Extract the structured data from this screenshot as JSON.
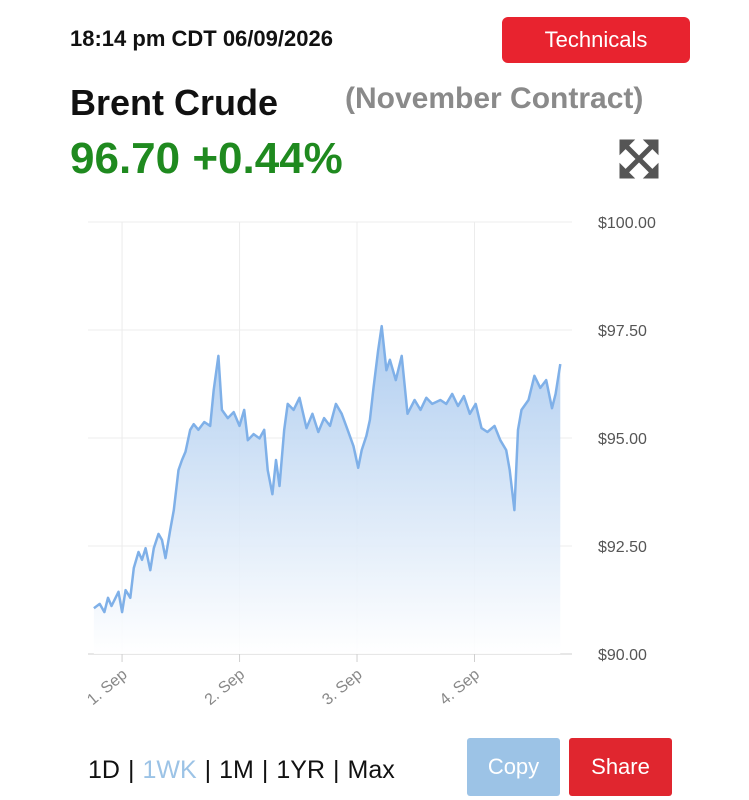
{
  "header": {
    "timestamp": "18:14 pm CDT 06/09/2026",
    "technicals_button": "Technicals",
    "title": "Brent Crude",
    "contract": "(November Contract)",
    "price": "96.70",
    "change": "+0.44%"
  },
  "chart_data": {
    "type": "line",
    "color": "#7fb0e8",
    "grid": true,
    "x": [
      0.76,
      0.81,
      0.85,
      0.88,
      0.91,
      0.97,
      1.0,
      1.03,
      1.07,
      1.1,
      1.14,
      1.17,
      1.2,
      1.24,
      1.27,
      1.31,
      1.34,
      1.37,
      1.41,
      1.44,
      1.48,
      1.51,
      1.54,
      1.58,
      1.61,
      1.65,
      1.7,
      1.75,
      1.78,
      1.82,
      1.85,
      1.9,
      1.95,
      2.0,
      2.04,
      2.07,
      2.12,
      2.17,
      2.21,
      2.24,
      2.28,
      2.31,
      2.34,
      2.38,
      2.41,
      2.46,
      2.51,
      2.57,
      2.62,
      2.67,
      2.72,
      2.77,
      2.82,
      2.87,
      2.92,
      2.97,
      3.01,
      3.04,
      3.08,
      3.11,
      3.14,
      3.18,
      3.21,
      3.25,
      3.28,
      3.33,
      3.38,
      3.43,
      3.49,
      3.54,
      3.59,
      3.64,
      3.71,
      3.76,
      3.81,
      3.86,
      3.91,
      3.96,
      4.01,
      4.06,
      4.11,
      4.17,
      4.22,
      4.27,
      4.3,
      4.34,
      4.37,
      4.4,
      4.46,
      4.51,
      4.56,
      4.61,
      4.66,
      4.69,
      4.73
    ],
    "values": [
      91.06,
      91.16,
      90.97,
      91.3,
      91.11,
      91.44,
      90.97,
      91.48,
      91.3,
      91.99,
      92.36,
      92.18,
      92.45,
      91.94,
      92.45,
      92.78,
      92.64,
      92.22,
      92.87,
      93.33,
      94.26,
      94.49,
      94.68,
      95.19,
      95.32,
      95.19,
      95.37,
      95.28,
      96.11,
      96.9,
      95.65,
      95.46,
      95.6,
      95.28,
      95.65,
      94.95,
      95.09,
      94.99,
      95.19,
      94.26,
      93.7,
      94.49,
      93.89,
      95.19,
      95.79,
      95.65,
      95.93,
      95.23,
      95.56,
      95.14,
      95.46,
      95.28,
      95.79,
      95.56,
      95.19,
      94.81,
      94.31,
      94.72,
      95.05,
      95.42,
      96.16,
      97.04,
      97.59,
      96.57,
      96.81,
      96.34,
      96.9,
      95.56,
      95.88,
      95.65,
      95.93,
      95.79,
      95.88,
      95.79,
      96.02,
      95.74,
      95.97,
      95.56,
      95.79,
      95.23,
      95.14,
      95.28,
      94.95,
      94.72,
      94.26,
      93.33,
      95.19,
      95.65,
      95.88,
      96.44,
      96.16,
      96.34,
      95.69,
      96.02,
      96.71
    ],
    "xlim": [
      0.71,
      4.83
    ],
    "ylim": [
      90,
      100
    ],
    "xticks": [
      {
        "value": 1,
        "label": "1. Sep"
      },
      {
        "value": 2,
        "label": "2. Sep"
      },
      {
        "value": 3,
        "label": "3. Sep"
      },
      {
        "value": 4,
        "label": "4. Sep"
      }
    ],
    "yticks": [
      {
        "value": 90,
        "label": "$90.00"
      },
      {
        "value": 92.5,
        "label": "$92.50"
      },
      {
        "value": 95,
        "label": "$95.00"
      },
      {
        "value": 97.5,
        "label": "$97.50"
      },
      {
        "value": 100,
        "label": "$100.00"
      }
    ]
  },
  "controls": {
    "ranges": [
      "1D",
      "1WK",
      "1M",
      "1YR",
      "Max"
    ],
    "selected": 1,
    "separator": "|",
    "copy_button": "Copy",
    "share_button": "Share"
  }
}
